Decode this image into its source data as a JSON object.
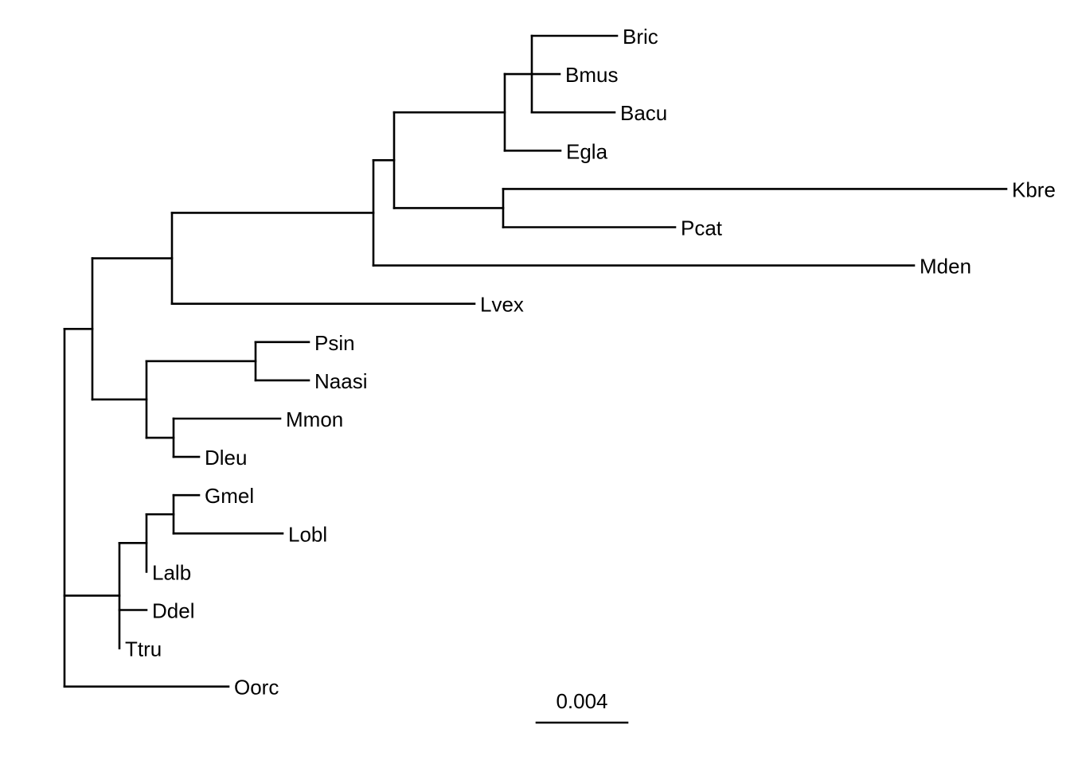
{
  "tree": {
    "type": "phylogram",
    "line_color": "#000000",
    "tips": [
      "Bric",
      "Bmus",
      "Bacu",
      "Egla",
      "Kbre",
      "Pcat",
      "Mden",
      "Lvex",
      "Psin",
      "Naasi",
      "Mmon",
      "Dleu",
      "Gmel",
      "Lobl",
      "Lalb",
      "Ddel",
      "Ttru",
      "Oorc"
    ]
  },
  "scale_bar": {
    "label": "0.004"
  }
}
